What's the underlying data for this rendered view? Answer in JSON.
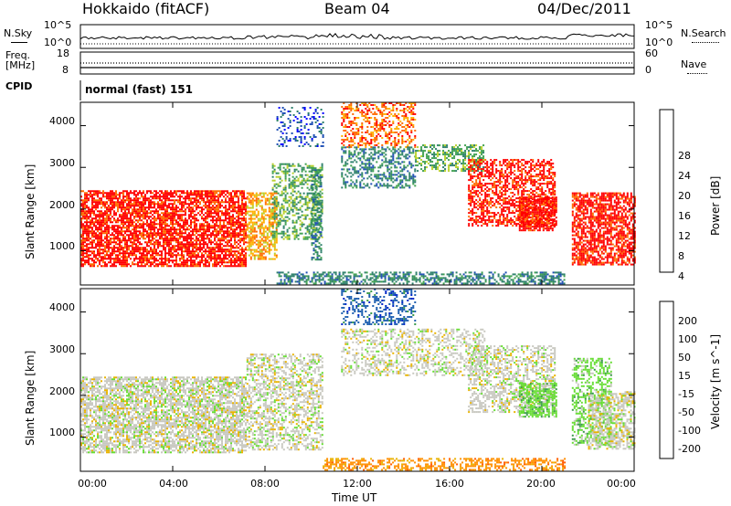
{
  "header": {
    "radar": "Hokkaido (fitACF)",
    "beam": "Beam 04",
    "date": "04/Dec/2011"
  },
  "nsky_panel": {
    "left_label": "N.Sky",
    "right_label": "N.Search",
    "left_ticks": [
      "10^5",
      "10^0"
    ],
    "right_ticks": [
      "10^5",
      "10^0"
    ]
  },
  "freq_panel": {
    "left_label_1": "Freq.",
    "left_label_2": "[MHz]",
    "right_label": "Nave",
    "left_ticks": [
      "18",
      "8"
    ],
    "right_ticks": [
      "60",
      "0"
    ]
  },
  "cpid_panel": {
    "label": "CPID",
    "value": "normal (fast) 151"
  },
  "colors": {
    "power_scale": [
      "#0000ff",
      "#1f4fb4",
      "#2c7f6a",
      "#3fa050",
      "#b9d02a",
      "#ffb000",
      "#ff6a00",
      "#ff0000"
    ],
    "velocity_scale": [
      "#ff0000",
      "#ff5a00",
      "#ff9000",
      "#e8b300",
      "#c8c8c0",
      "#66dd33",
      "#3a9a4a",
      "#1f60b0",
      "#0028c8"
    ]
  },
  "chart_data": [
    {
      "type": "heatmap",
      "panel": "power",
      "ylabel": "Slant Range [km]",
      "ylim": [
        180,
        4560
      ],
      "y_ticks": [
        1000,
        2000,
        3000,
        4000
      ],
      "colorbar_label": "Power [dB]",
      "colorbar_ticks": [
        4,
        8,
        12,
        16,
        20,
        24,
        28
      ],
      "regions": [
        {
          "t0": 0.0,
          "t1": 7.2,
          "r0": 650,
          "r1": 2450,
          "level": 7,
          "density": 0.75
        },
        {
          "t0": 7.2,
          "t1": 8.5,
          "r0": 800,
          "r1": 2400,
          "level": 5,
          "density": 0.6
        },
        {
          "t0": 8.3,
          "t1": 10.5,
          "r0": 1300,
          "r1": 3100,
          "level": 3,
          "density": 0.45
        },
        {
          "t0": 8.5,
          "t1": 10.5,
          "r0": 3500,
          "r1": 4450,
          "level": 1,
          "density": 0.25
        },
        {
          "t0": 10.0,
          "t1": 10.4,
          "r0": 800,
          "r1": 3000,
          "level": 2,
          "density": 0.5
        },
        {
          "t0": 11.3,
          "t1": 14.5,
          "r0": 3500,
          "r1": 4560,
          "level": 6,
          "density": 0.4
        },
        {
          "t0": 11.3,
          "t1": 14.5,
          "r0": 2500,
          "r1": 3500,
          "level": 2,
          "density": 0.45
        },
        {
          "t0": 14.5,
          "t1": 17.5,
          "r0": 2900,
          "r1": 3550,
          "level": 3,
          "density": 0.5
        },
        {
          "t0": 16.8,
          "t1": 20.6,
          "r0": 1600,
          "r1": 3200,
          "level": 7,
          "density": 0.55
        },
        {
          "t0": 19.0,
          "t1": 20.6,
          "r0": 1500,
          "r1": 2300,
          "level": 7,
          "density": 0.8
        },
        {
          "t0": 21.3,
          "t1": 24.0,
          "r0": 650,
          "r1": 2400,
          "level": 7,
          "density": 0.7
        },
        {
          "t0": 8.5,
          "t1": 21.0,
          "r0": 200,
          "r1": 500,
          "level": 2,
          "density": 0.55
        }
      ]
    },
    {
      "type": "heatmap",
      "panel": "velocity",
      "ylabel": "Slant Range [km]",
      "ylim": [
        180,
        4560
      ],
      "y_ticks": [
        1000,
        2000,
        3000,
        4000
      ],
      "colorbar_label": "Velocity [m s^-1]",
      "colorbar_ticks": [
        200,
        100,
        50,
        15,
        -15,
        -50,
        -100,
        -200
      ],
      "regions": [
        {
          "t0": 0.0,
          "t1": 7.2,
          "r0": 650,
          "r1": 2450,
          "level": 4,
          "density": 0.7
        },
        {
          "t0": 7.2,
          "t1": 10.5,
          "r0": 700,
          "r1": 3000,
          "level": 4,
          "density": 0.5
        },
        {
          "t0": 11.3,
          "t1": 14.5,
          "r0": 3700,
          "r1": 4560,
          "level": 7,
          "density": 0.35
        },
        {
          "t0": 11.3,
          "t1": 17.5,
          "r0": 2500,
          "r1": 3600,
          "level": 4,
          "density": 0.4
        },
        {
          "t0": 16.8,
          "t1": 20.6,
          "r0": 1600,
          "r1": 3200,
          "level": 4,
          "density": 0.5
        },
        {
          "t0": 19.0,
          "t1": 20.6,
          "r0": 1500,
          "r1": 2300,
          "level": 5,
          "density": 0.7
        },
        {
          "t0": 21.3,
          "t1": 23.0,
          "r0": 800,
          "r1": 2900,
          "level": 5,
          "density": 0.45
        },
        {
          "t0": 22.0,
          "t1": 24.0,
          "r0": 700,
          "r1": 2100,
          "level": 4,
          "density": 0.6
        },
        {
          "t0": 10.5,
          "t1": 21.0,
          "r0": 200,
          "r1": 500,
          "level": 2,
          "density": 0.5
        }
      ]
    }
  ],
  "x_axis": {
    "label": "Time UT",
    "ticks": [
      "00:00",
      "04:00",
      "08:00",
      "12:00",
      "16:00",
      "20:00",
      "00:00"
    ]
  }
}
